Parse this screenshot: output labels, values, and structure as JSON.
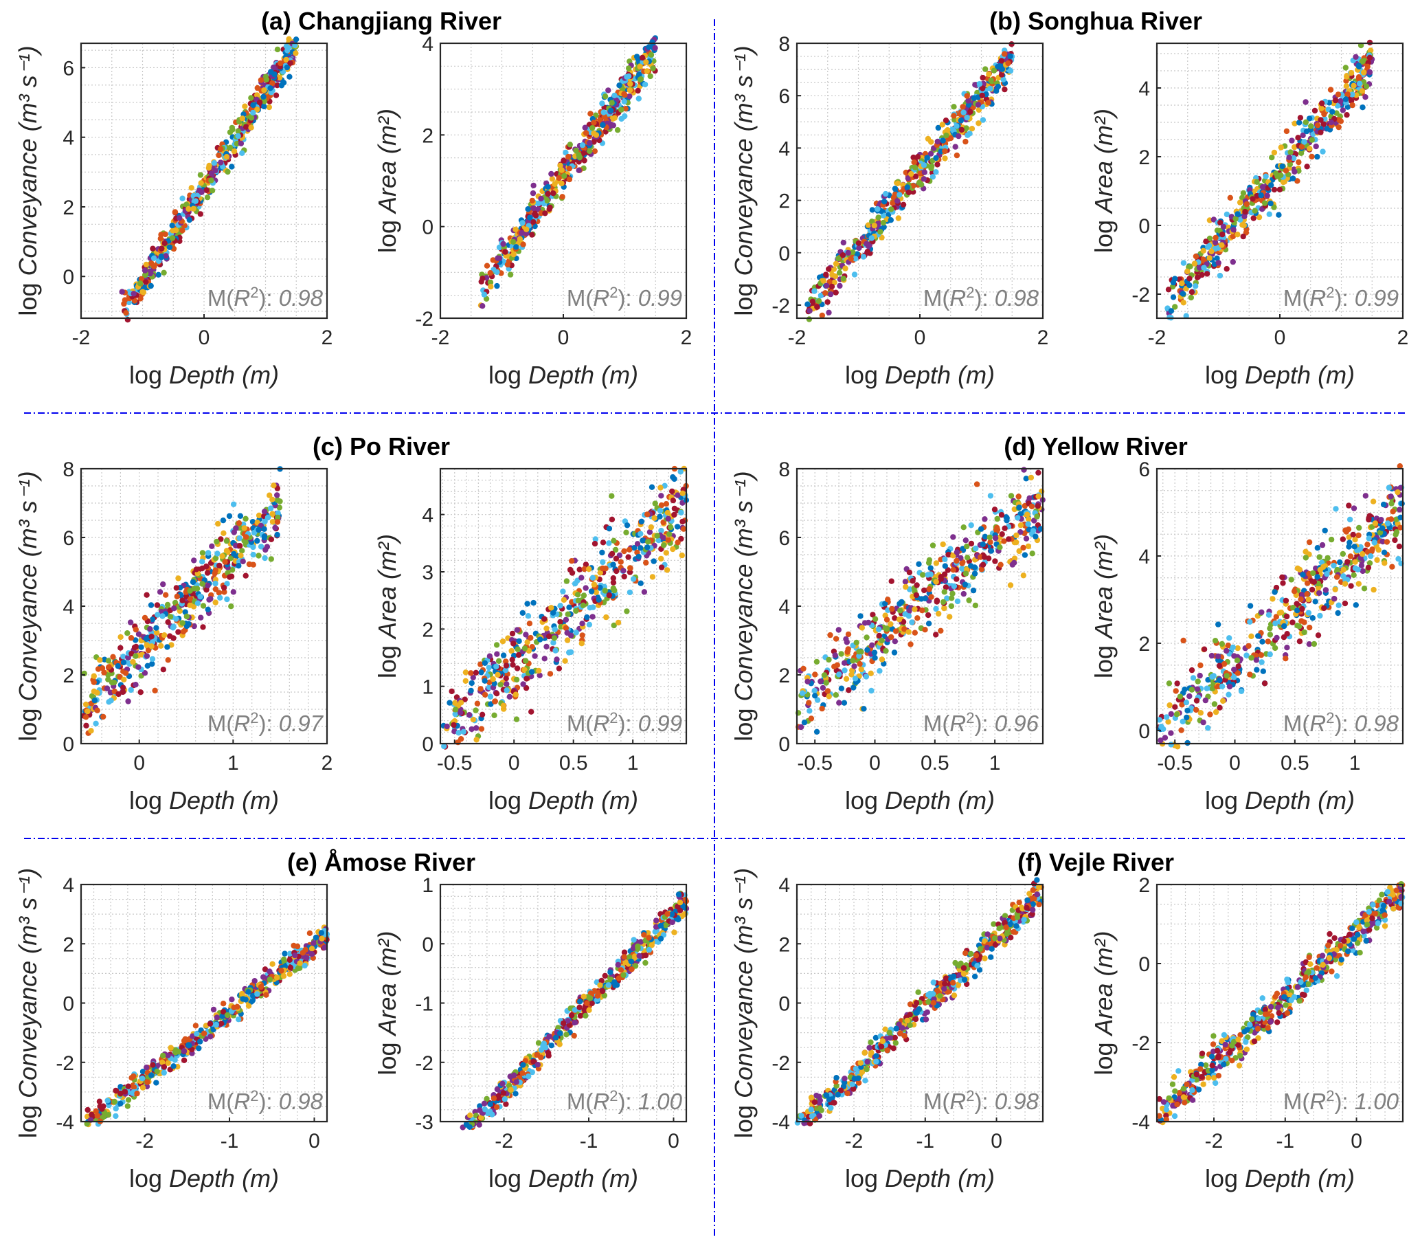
{
  "separator_color": "#0000ee",
  "marker_colors": [
    "#0072BD",
    "#D95319",
    "#EDB120",
    "#7E2F8E",
    "#77AC30",
    "#4DBEEE",
    "#A2142F"
  ],
  "axis_labels": {
    "x_prefix": "log ",
    "x_var": "Depth",
    "x_unit": " (m)",
    "y_conv_prefix": "log ",
    "y_conv_var": "Conveyance",
    "y_conv_unit": "(m³ s⁻¹)",
    "y_area_prefix": "log ",
    "y_area_var": "Area",
    "y_area_unit": "(m²)"
  },
  "annotation_prefix": "M(",
  "annotation_var": "R",
  "annotation_sup": "2",
  "annotation_suffix": "): ",
  "chart_data": [
    {
      "panel": "a",
      "river_title": "(a) Changjiang River",
      "type": "scatter",
      "ylabel": "log Conveyance (m^3 s^-1)",
      "xlabel": "log Depth (m)",
      "xlim": [
        -2,
        2
      ],
      "ylim": [
        -1.2,
        6.7
      ],
      "xticks": [
        -2,
        0,
        2
      ],
      "yticks": [
        0,
        2,
        4,
        6
      ],
      "grid": true,
      "r2": "0.98",
      "trend": {
        "x_start": -1.35,
        "x_end": 1.5,
        "slope": 2.75,
        "intercept": 2.55,
        "spread": 0.45
      }
    },
    {
      "panel": "a2",
      "river_title": "",
      "type": "scatter",
      "ylabel": "log Area (m^2)",
      "xlabel": "log Depth (m)",
      "xlim": [
        -2,
        2
      ],
      "ylim": [
        -2,
        4
      ],
      "xticks": [
        -2,
        0,
        2
      ],
      "yticks": [
        -2,
        0,
        2,
        4
      ],
      "grid": true,
      "r2": "0.99",
      "trend": {
        "x_start": -1.35,
        "x_end": 1.5,
        "slope": 1.85,
        "intercept": 1.1,
        "spread": 0.4
      }
    },
    {
      "panel": "b",
      "river_title": "(b) Songhua River",
      "type": "scatter",
      "ylabel": "log Conveyance (m^3 s^-1)",
      "xlabel": "log Depth (m)",
      "xlim": [
        -2,
        2
      ],
      "ylim": [
        -2.5,
        8
      ],
      "xticks": [
        -2,
        0,
        2
      ],
      "yticks": [
        -2,
        0,
        2,
        4,
        6,
        8
      ],
      "grid": true,
      "r2": "0.98",
      "trend": {
        "x_start": -1.85,
        "x_end": 1.5,
        "slope": 2.9,
        "intercept": 3.1,
        "spread": 0.7
      }
    },
    {
      "panel": "b2",
      "river_title": "",
      "type": "scatter",
      "ylabel": "log Area (m^2)",
      "xlabel": "log Depth (m)",
      "xlim": [
        -2,
        2
      ],
      "ylim": [
        -2.7,
        5.3
      ],
      "xticks": [
        -2,
        0,
        2
      ],
      "yticks": [
        -2,
        0,
        2,
        4
      ],
      "grid": true,
      "r2": "0.99",
      "trend": {
        "x_start": -1.85,
        "x_end": 1.5,
        "slope": 2.1,
        "intercept": 1.5,
        "spread": 0.7
      }
    },
    {
      "panel": "c",
      "river_title": "(c) Po River",
      "type": "scatter",
      "ylabel": "log Conveyance (m^3 s^-1)",
      "xlabel": "log Depth (m)",
      "xlim": [
        -0.62,
        2
      ],
      "ylim": [
        0,
        8
      ],
      "xticks": [
        0,
        1,
        2
      ],
      "yticks": [
        0,
        2,
        4,
        6,
        8
      ],
      "grid": true,
      "r2": "0.97",
      "trend": {
        "x_start": -0.6,
        "x_end": 1.5,
        "slope": 2.8,
        "intercept": 2.75,
        "spread": 0.9
      }
    },
    {
      "panel": "c2",
      "river_title": "",
      "type": "scatter",
      "ylabel": "log Area (m^2)",
      "xlabel": "log Depth (m)",
      "xlim": [
        -0.62,
        1.45
      ],
      "ylim": [
        0,
        4.8
      ],
      "xticks": [
        -0.5,
        0,
        0.5,
        1
      ],
      "yticks": [
        0,
        1,
        2,
        3,
        4
      ],
      "grid": true,
      "r2": "0.99",
      "trend": {
        "x_start": -0.6,
        "x_end": 1.45,
        "slope": 1.95,
        "intercept": 1.35,
        "spread": 0.7
      }
    },
    {
      "panel": "d",
      "river_title": "(d) Yellow River",
      "type": "scatter",
      "ylabel": "log Conveyance (m^3 s^-1)",
      "xlabel": "log Depth (m)",
      "xlim": [
        -0.65,
        1.4
      ],
      "ylim": [
        0,
        8
      ],
      "xticks": [
        -0.5,
        0,
        0.5,
        1
      ],
      "yticks": [
        0,
        2,
        4,
        6,
        8
      ],
      "grid": true,
      "r2": "0.96",
      "trend": {
        "x_start": -0.65,
        "x_end": 1.4,
        "slope": 2.9,
        "intercept": 3.0,
        "spread": 1.0
      }
    },
    {
      "panel": "d2",
      "river_title": "",
      "type": "scatter",
      "ylabel": "log Area (m^2)",
      "xlabel": "log Depth (m)",
      "xlim": [
        -0.65,
        1.4
      ],
      "ylim": [
        -0.3,
        6
      ],
      "xticks": [
        -0.5,
        0,
        0.5,
        1
      ],
      "yticks": [
        0,
        2,
        4,
        6
      ],
      "grid": true,
      "r2": "0.98",
      "trend": {
        "x_start": -0.65,
        "x_end": 1.4,
        "slope": 2.5,
        "intercept": 1.5,
        "spread": 0.9
      }
    },
    {
      "panel": "e",
      "river_title": "(e) Åmose River",
      "type": "scatter",
      "ylabel": "log Conveyance (m^3 s^-1)",
      "xlabel": "log Depth (m)",
      "xlim": [
        -2.75,
        0.15
      ],
      "ylim": [
        -4,
        4
      ],
      "xticks": [
        -2,
        -1,
        0
      ],
      "yticks": [
        -4,
        -2,
        0,
        2,
        4
      ],
      "grid": true,
      "r2": "0.98",
      "trend": {
        "x_start": -2.7,
        "x_end": 0.15,
        "slope": 2.25,
        "intercept": 1.95,
        "spread": 0.35
      }
    },
    {
      "panel": "e2",
      "river_title": "",
      "type": "scatter",
      "ylabel": "log Area (m^2)",
      "xlabel": "log Depth (m)",
      "xlim": [
        -2.75,
        0.15
      ],
      "ylim": [
        -3,
        1
      ],
      "xticks": [
        -2,
        -1,
        0
      ],
      "yticks": [
        -3,
        -2,
        -1,
        0,
        1
      ],
      "grid": true,
      "r2": "1.00",
      "trend": {
        "x_start": -2.7,
        "x_end": 0.15,
        "slope": 1.5,
        "intercept": 0.5,
        "spread": 0.2
      }
    },
    {
      "panel": "f",
      "river_title": "(f) Vejle River",
      "type": "scatter",
      "ylabel": "log Conveyance (m^3 s^-1)",
      "xlabel": "log Depth (m)",
      "xlim": [
        -2.8,
        0.65
      ],
      "ylim": [
        -4,
        4
      ],
      "xticks": [
        -2,
        -1,
        0
      ],
      "yticks": [
        -4,
        -2,
        0,
        2,
        4
      ],
      "grid": true,
      "r2": "0.98",
      "trend": {
        "x_start": -2.8,
        "x_end": 0.65,
        "slope": 2.3,
        "intercept": 2.2,
        "spread": 0.45
      }
    },
    {
      "panel": "f2",
      "river_title": "",
      "type": "scatter",
      "ylabel": "log Area (m^2)",
      "xlabel": "log Depth (m)",
      "xlim": [
        -2.8,
        0.65
      ],
      "ylim": [
        -4,
        2
      ],
      "xticks": [
        -2,
        -1,
        0
      ],
      "yticks": [
        -4,
        -2,
        0,
        2
      ],
      "grid": true,
      "r2": "1.00",
      "trend": {
        "x_start": -2.8,
        "x_end": 0.65,
        "slope": 1.65,
        "intercept": 0.75,
        "spread": 0.4
      }
    }
  ]
}
